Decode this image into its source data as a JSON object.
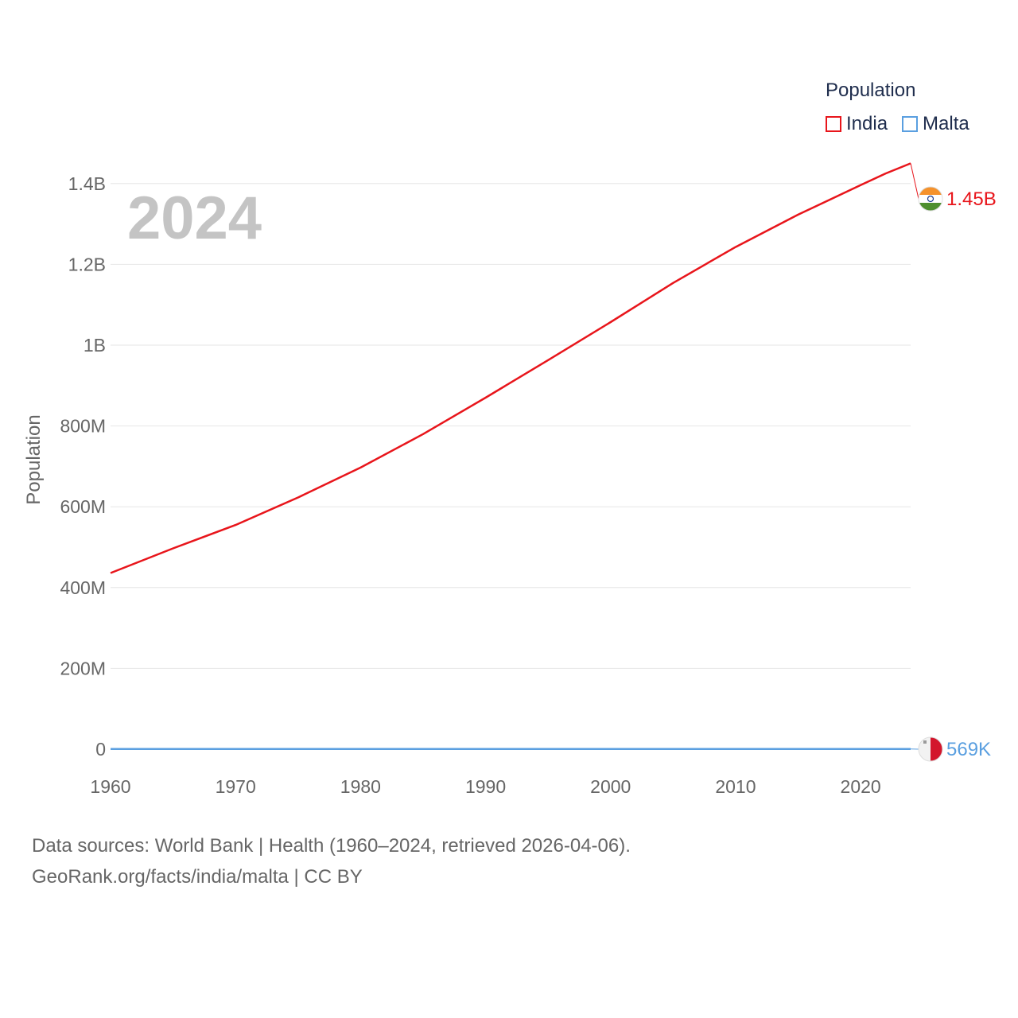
{
  "chart_data": {
    "type": "line",
    "title": "",
    "year_label": "2024",
    "xlabel": "",
    "ylabel": "Population",
    "xlim": [
      1960,
      2024
    ],
    "ylim": [
      0,
      1500000000
    ],
    "x_ticks": [
      1960,
      1970,
      1980,
      1990,
      2000,
      2010,
      2020
    ],
    "y_ticks": [
      {
        "value": 0,
        "label": "0"
      },
      {
        "value": 200000000,
        "label": "200M"
      },
      {
        "value": 400000000,
        "label": "400M"
      },
      {
        "value": 600000000,
        "label": "600M"
      },
      {
        "value": 800000000,
        "label": "800M"
      },
      {
        "value": 1000000000,
        "label": "1B"
      },
      {
        "value": 1200000000,
        "label": "1.2B"
      },
      {
        "value": 1400000000,
        "label": "1.4B"
      }
    ],
    "grid": true,
    "legend": {
      "title": "Population",
      "placement": "top-right"
    },
    "series": [
      {
        "name": "India",
        "color": "#e8151b",
        "end_label": "1.45B",
        "flag_icon": "india-flag-icon",
        "points": [
          [
            1960,
            436000000
          ],
          [
            1965,
            497000000
          ],
          [
            1970,
            555000000
          ],
          [
            1975,
            623000000
          ],
          [
            1980,
            697000000
          ],
          [
            1985,
            780000000
          ],
          [
            1990,
            870000000
          ],
          [
            1995,
            963000000
          ],
          [
            2000,
            1057000000
          ],
          [
            2005,
            1154000000
          ],
          [
            2010,
            1243000000
          ],
          [
            2015,
            1323000000
          ],
          [
            2020,
            1396000000
          ],
          [
            2022,
            1425000000
          ],
          [
            2024,
            1450000000
          ]
        ]
      },
      {
        "name": "Malta",
        "color": "#5a9fe0",
        "end_label": "569K",
        "flag_icon": "malta-flag-icon",
        "points": [
          [
            1960,
            313000
          ],
          [
            1970,
            303000
          ],
          [
            1980,
            325000
          ],
          [
            1990,
            362000
          ],
          [
            2000,
            393000
          ],
          [
            2010,
            414000
          ],
          [
            2020,
            515000
          ],
          [
            2024,
            569000
          ]
        ]
      }
    ],
    "axis_color": "#666666",
    "grid_color": "#e6e6e6"
  },
  "source": {
    "line1": "Data sources: World Bank | Health (1960–2024, retrieved 2026-04-06).",
    "line2": "GeoRank.org/facts/india/malta | CC BY"
  }
}
